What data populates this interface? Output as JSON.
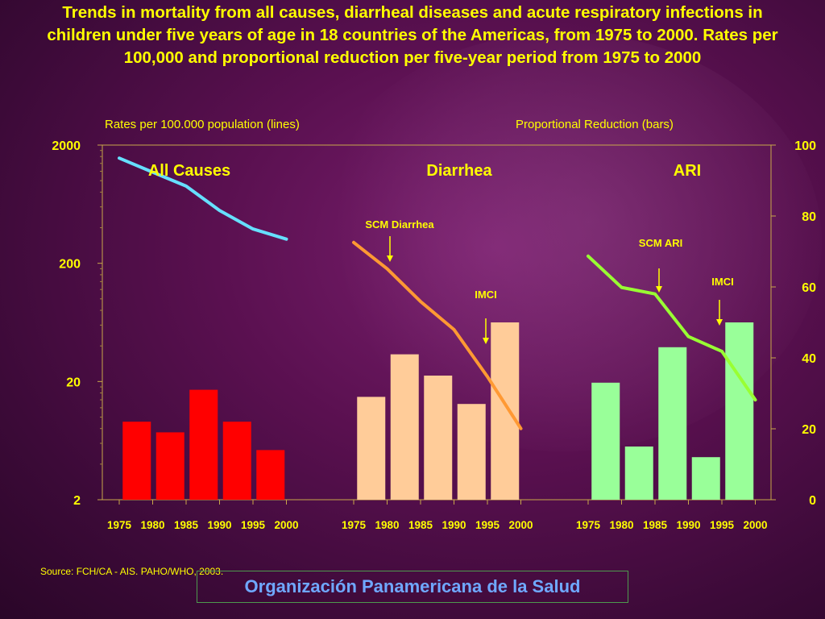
{
  "title": "Trends in mortality from all causes, diarrheal diseases and acute respiratory infections in children under five years of age in 18 countries of the Americas, from 1975 to 2000. Rates per 100,000 and proportional reduction per five-year period from 1975 to 2000",
  "source": "Source: FCH/CA - AIS. PAHO/WHO, 2003.",
  "footer": "Organización Panamericana de la Salud",
  "chart_data": {
    "type": "bar",
    "left_axis_label": "Rates per 100.000 population (lines)",
    "right_axis_label": "Proportional Reduction (bars)",
    "left_axis": {
      "scale": "log",
      "ticks": [
        "2",
        "20",
        "200",
        "2000"
      ],
      "ylim": [
        2,
        2000
      ]
    },
    "right_axis": {
      "scale": "linear",
      "ticks": [
        "0",
        "20",
        "40",
        "60",
        "80",
        "100"
      ],
      "ylim": [
        0,
        100
      ]
    },
    "categories": [
      "1975",
      "1980",
      "1985",
      "1990",
      "1995",
      "2000"
    ],
    "panels": [
      {
        "name": "All Causes",
        "bar_color": "#ff0000",
        "line_color": "#66e0ff",
        "bars": [
          22,
          19,
          31,
          22,
          14,
          null
        ],
        "line": [
          1550,
          1180,
          900,
          560,
          390,
          320
        ],
        "annotations": []
      },
      {
        "name": "Diarrhea",
        "bar_color": "#ffcc99",
        "line_color": "#ff9933",
        "bars": [
          29,
          41,
          35,
          27,
          50,
          null
        ],
        "line": [
          300,
          180,
          95,
          55,
          22,
          8
        ],
        "annotations": [
          {
            "label": "SCM Diarrhea",
            "year": "1980"
          },
          {
            "label": "IMCI",
            "year": "1995"
          }
        ]
      },
      {
        "name": "ARI",
        "bar_color": "#99ff99",
        "line_color": "#99ff33",
        "bars": [
          33,
          15,
          43,
          12,
          50,
          null
        ],
        "line": [
          230,
          125,
          110,
          48,
          36,
          14
        ],
        "annotations": [
          {
            "label": "SCM ARI",
            "year": "1985"
          },
          {
            "label": "IMCI",
            "year": "1995"
          }
        ]
      }
    ]
  }
}
